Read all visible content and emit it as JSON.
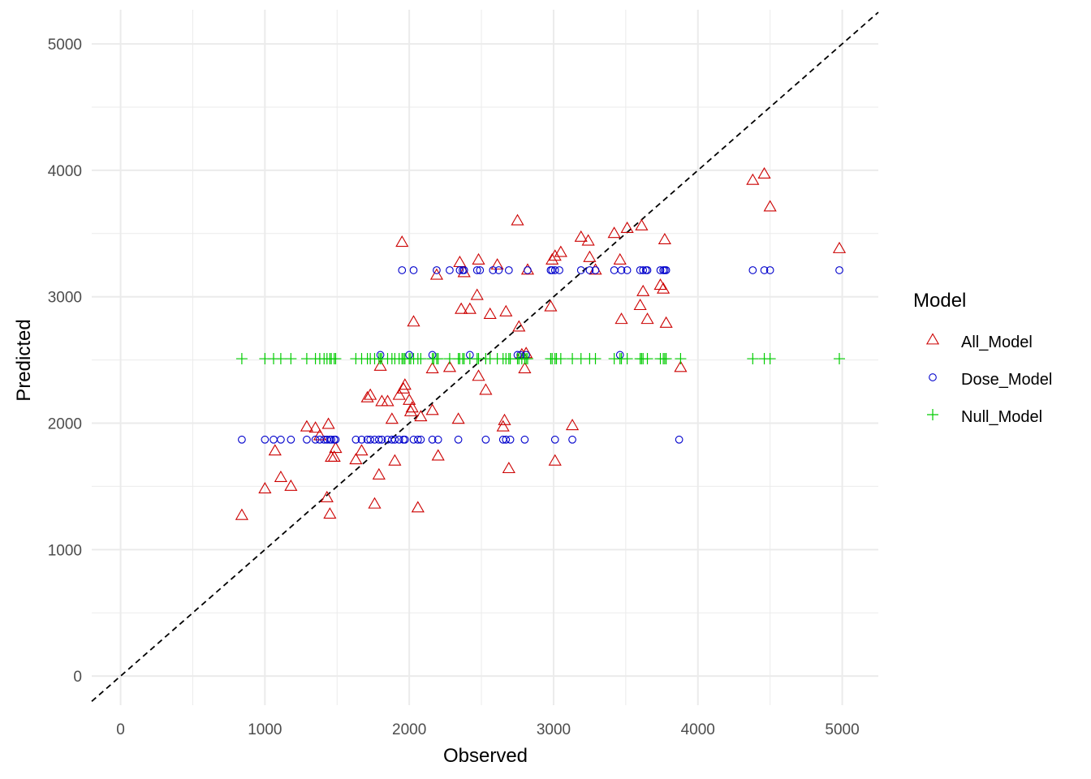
{
  "chart_data": {
    "type": "scatter",
    "xlabel": "Observed",
    "ylabel": "Predicted",
    "xlim": [
      -200,
      5250
    ],
    "ylim": [
      -230,
      5270
    ],
    "x_ticks": [
      0,
      1000,
      2000,
      3000,
      4000,
      5000
    ],
    "y_ticks": [
      0,
      1000,
      2000,
      3000,
      4000,
      5000
    ],
    "x_tick_labels": [
      "0",
      "1000",
      "2000",
      "3000",
      "4000",
      "5000"
    ],
    "y_tick_labels": [
      "0",
      "1000",
      "2000",
      "3000",
      "4000",
      "5000"
    ],
    "grid": true,
    "reference_line": {
      "slope": 1,
      "intercept": 0,
      "style": "dashed",
      "color": "#000000"
    },
    "legend": {
      "title": "Model",
      "position": "right",
      "entries": [
        {
          "label": "All_Model",
          "shape": "triangle",
          "color": "#cc0000"
        },
        {
          "label": "Dose_Model",
          "shape": "circle",
          "color": "#0000cc"
        },
        {
          "label": "Null_Model",
          "shape": "plus",
          "color": "#00cc00"
        }
      ]
    },
    "series": [
      {
        "name": "All_Model",
        "shape": "triangle",
        "color": "#cc0000",
        "points": [
          [
            840,
            1270
          ],
          [
            1000,
            1480
          ],
          [
            1070,
            1780
          ],
          [
            1110,
            1570
          ],
          [
            1180,
            1500
          ],
          [
            1290,
            1970
          ],
          [
            1350,
            1960
          ],
          [
            1380,
            1900
          ],
          [
            1430,
            1410
          ],
          [
            1440,
            1990
          ],
          [
            1450,
            1280
          ],
          [
            1460,
            1730
          ],
          [
            1480,
            1730
          ],
          [
            1490,
            1800
          ],
          [
            1630,
            1710
          ],
          [
            1670,
            1780
          ],
          [
            1710,
            2200
          ],
          [
            1730,
            2220
          ],
          [
            1760,
            1360
          ],
          [
            1790,
            1590
          ],
          [
            1800,
            2450
          ],
          [
            1810,
            2170
          ],
          [
            1850,
            2170
          ],
          [
            1880,
            2030
          ],
          [
            1900,
            1700
          ],
          [
            1930,
            2220
          ],
          [
            1950,
            3430
          ],
          [
            1960,
            2270
          ],
          [
            1970,
            2300
          ],
          [
            2000,
            2180
          ],
          [
            2010,
            2090
          ],
          [
            2020,
            2120
          ],
          [
            2030,
            2800
          ],
          [
            2060,
            1330
          ],
          [
            2080,
            2050
          ],
          [
            2160,
            2430
          ],
          [
            2160,
            2100
          ],
          [
            2190,
            3170
          ],
          [
            2200,
            1740
          ],
          [
            2280,
            2440
          ],
          [
            2340,
            2030
          ],
          [
            2350,
            3270
          ],
          [
            2360,
            2900
          ],
          [
            2380,
            3190
          ],
          [
            2420,
            2900
          ],
          [
            2470,
            3010
          ],
          [
            2480,
            3290
          ],
          [
            2480,
            2370
          ],
          [
            2530,
            2260
          ],
          [
            2560,
            2860
          ],
          [
            2610,
            3250
          ],
          [
            2650,
            1970
          ],
          [
            2660,
            2020
          ],
          [
            2670,
            2880
          ],
          [
            2690,
            1640
          ],
          [
            2750,
            3600
          ],
          [
            2760,
            2760
          ],
          [
            2780,
            2540
          ],
          [
            2800,
            2430
          ],
          [
            2810,
            2550
          ],
          [
            2820,
            3210
          ],
          [
            2980,
            2920
          ],
          [
            2990,
            3290
          ],
          [
            3010,
            3320
          ],
          [
            3010,
            1700
          ],
          [
            3050,
            3350
          ],
          [
            3130,
            1980
          ],
          [
            3190,
            3470
          ],
          [
            3240,
            3440
          ],
          [
            3250,
            3310
          ],
          [
            3290,
            3210
          ],
          [
            3420,
            3500
          ],
          [
            3460,
            3290
          ],
          [
            3470,
            2820
          ],
          [
            3510,
            3540
          ],
          [
            3600,
            2930
          ],
          [
            3610,
            3560
          ],
          [
            3620,
            3040
          ],
          [
            3650,
            2820
          ],
          [
            3740,
            3090
          ],
          [
            3760,
            3060
          ],
          [
            3770,
            3450
          ],
          [
            3780,
            2790
          ],
          [
            3880,
            2440
          ],
          [
            4380,
            3920
          ],
          [
            4460,
            3970
          ],
          [
            4500,
            3710
          ],
          [
            4980,
            3380
          ]
        ]
      },
      {
        "name": "Dose_Model",
        "shape": "circle",
        "color": "#0000cc",
        "points": [
          [
            840,
            1870
          ],
          [
            1000,
            1870
          ],
          [
            1060,
            1870
          ],
          [
            1110,
            1870
          ],
          [
            1180,
            1870
          ],
          [
            1290,
            1870
          ],
          [
            1350,
            1870
          ],
          [
            1380,
            1870
          ],
          [
            1410,
            1870
          ],
          [
            1430,
            1870
          ],
          [
            1450,
            1870
          ],
          [
            1460,
            1870
          ],
          [
            1480,
            1870
          ],
          [
            1490,
            1870
          ],
          [
            1630,
            1870
          ],
          [
            1670,
            1870
          ],
          [
            1710,
            1870
          ],
          [
            1730,
            1870
          ],
          [
            1760,
            1870
          ],
          [
            1790,
            1870
          ],
          [
            1800,
            2540
          ],
          [
            1810,
            1870
          ],
          [
            1850,
            1870
          ],
          [
            1880,
            1870
          ],
          [
            1900,
            1870
          ],
          [
            1930,
            1870
          ],
          [
            1950,
            3210
          ],
          [
            1960,
            1870
          ],
          [
            1970,
            1870
          ],
          [
            2000,
            2540
          ],
          [
            2030,
            3210
          ],
          [
            2030,
            1870
          ],
          [
            2060,
            1870
          ],
          [
            2080,
            1870
          ],
          [
            2160,
            1870
          ],
          [
            2160,
            2540
          ],
          [
            2190,
            3210
          ],
          [
            2200,
            1870
          ],
          [
            2280,
            3210
          ],
          [
            2340,
            1870
          ],
          [
            2350,
            3210
          ],
          [
            2370,
            3210
          ],
          [
            2380,
            3210
          ],
          [
            2420,
            2540
          ],
          [
            2470,
            3210
          ],
          [
            2490,
            3210
          ],
          [
            2530,
            1870
          ],
          [
            2580,
            3210
          ],
          [
            2620,
            3210
          ],
          [
            2650,
            1870
          ],
          [
            2670,
            1870
          ],
          [
            2690,
            3210
          ],
          [
            2700,
            1870
          ],
          [
            2750,
            2540
          ],
          [
            2770,
            2540
          ],
          [
            2800,
            1870
          ],
          [
            2810,
            2540
          ],
          [
            2820,
            3210
          ],
          [
            2980,
            3210
          ],
          [
            2990,
            3210
          ],
          [
            3010,
            3210
          ],
          [
            3010,
            1870
          ],
          [
            3040,
            3210
          ],
          [
            3130,
            1870
          ],
          [
            3190,
            3210
          ],
          [
            3250,
            3210
          ],
          [
            3290,
            3210
          ],
          [
            3420,
            3210
          ],
          [
            3460,
            2540
          ],
          [
            3470,
            3210
          ],
          [
            3510,
            3210
          ],
          [
            3600,
            3210
          ],
          [
            3620,
            3210
          ],
          [
            3640,
            3210
          ],
          [
            3650,
            3210
          ],
          [
            3740,
            3210
          ],
          [
            3760,
            3210
          ],
          [
            3770,
            3210
          ],
          [
            3780,
            3210
          ],
          [
            3870,
            1870
          ],
          [
            4380,
            3210
          ],
          [
            4460,
            3210
          ],
          [
            4500,
            3210
          ],
          [
            4980,
            3210
          ]
        ]
      },
      {
        "name": "Null_Model",
        "shape": "plus",
        "color": "#00cc00",
        "points": [
          [
            840,
            2510
          ],
          [
            1000,
            2510
          ],
          [
            1060,
            2510
          ],
          [
            1110,
            2510
          ],
          [
            1180,
            2510
          ],
          [
            1290,
            2510
          ],
          [
            1350,
            2510
          ],
          [
            1380,
            2510
          ],
          [
            1410,
            2510
          ],
          [
            1430,
            2510
          ],
          [
            1450,
            2510
          ],
          [
            1460,
            2510
          ],
          [
            1480,
            2510
          ],
          [
            1490,
            2510
          ],
          [
            1630,
            2510
          ],
          [
            1670,
            2510
          ],
          [
            1710,
            2510
          ],
          [
            1730,
            2510
          ],
          [
            1760,
            2510
          ],
          [
            1790,
            2510
          ],
          [
            1800,
            2510
          ],
          [
            1810,
            2510
          ],
          [
            1850,
            2510
          ],
          [
            1880,
            2510
          ],
          [
            1900,
            2510
          ],
          [
            1930,
            2510
          ],
          [
            1950,
            2510
          ],
          [
            1960,
            2510
          ],
          [
            1970,
            2510
          ],
          [
            2000,
            2510
          ],
          [
            2010,
            2510
          ],
          [
            2030,
            2510
          ],
          [
            2060,
            2510
          ],
          [
            2080,
            2510
          ],
          [
            2160,
            2510
          ],
          [
            2170,
            2510
          ],
          [
            2190,
            2510
          ],
          [
            2200,
            2510
          ],
          [
            2280,
            2510
          ],
          [
            2340,
            2510
          ],
          [
            2350,
            2510
          ],
          [
            2370,
            2510
          ],
          [
            2380,
            2510
          ],
          [
            2420,
            2510
          ],
          [
            2470,
            2510
          ],
          [
            2480,
            2510
          ],
          [
            2530,
            2510
          ],
          [
            2560,
            2510
          ],
          [
            2610,
            2510
          ],
          [
            2650,
            2510
          ],
          [
            2670,
            2510
          ],
          [
            2690,
            2510
          ],
          [
            2700,
            2510
          ],
          [
            2750,
            2510
          ],
          [
            2760,
            2510
          ],
          [
            2780,
            2510
          ],
          [
            2800,
            2510
          ],
          [
            2810,
            2510
          ],
          [
            2820,
            2510
          ],
          [
            2980,
            2510
          ],
          [
            2990,
            2510
          ],
          [
            3010,
            2510
          ],
          [
            3020,
            2510
          ],
          [
            3050,
            2510
          ],
          [
            3130,
            2510
          ],
          [
            3190,
            2510
          ],
          [
            3250,
            2510
          ],
          [
            3290,
            2510
          ],
          [
            3420,
            2510
          ],
          [
            3460,
            2510
          ],
          [
            3470,
            2510
          ],
          [
            3510,
            2510
          ],
          [
            3600,
            2510
          ],
          [
            3610,
            2510
          ],
          [
            3620,
            2510
          ],
          [
            3650,
            2510
          ],
          [
            3740,
            2510
          ],
          [
            3760,
            2510
          ],
          [
            3770,
            2510
          ],
          [
            3780,
            2510
          ],
          [
            3880,
            2510
          ],
          [
            4380,
            2510
          ],
          [
            4460,
            2510
          ],
          [
            4500,
            2510
          ],
          [
            4980,
            2510
          ]
        ]
      }
    ]
  }
}
